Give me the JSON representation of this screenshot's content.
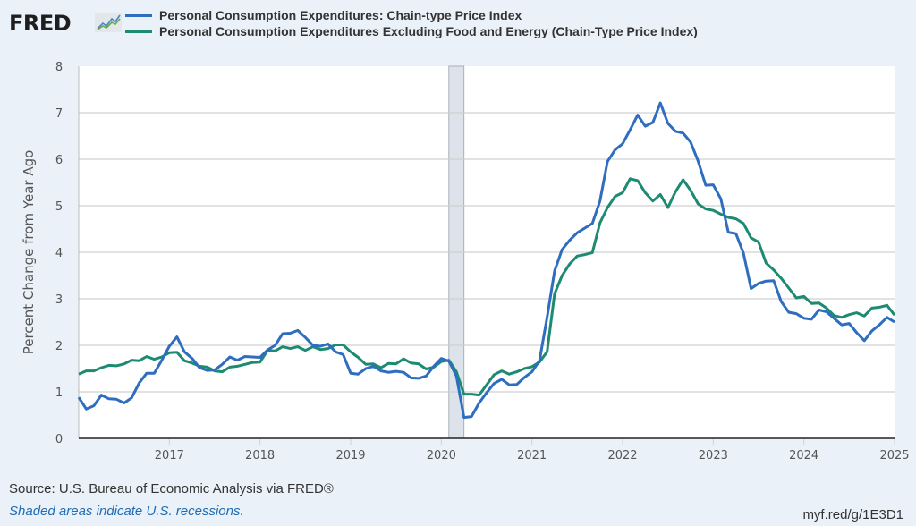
{
  "header": {
    "logo_text": "FRED",
    "logo_icon": "line-chart-icon"
  },
  "footer": {
    "source": "Source: U.S. Bureau of Economic Analysis via FRED®",
    "note": "Shaded areas indicate U.S. recessions.",
    "url": "myf.red/g/1E3D1"
  },
  "chart_data": {
    "type": "line",
    "title": "",
    "xlabel": "",
    "ylabel": "Percent Change from Year Ago",
    "ylim": [
      0,
      8
    ],
    "yticks": [
      "0",
      "1",
      "2",
      "3",
      "4",
      "5",
      "6",
      "7",
      "8"
    ],
    "xlim": [
      "2016-01",
      "2025-01"
    ],
    "xticks": [
      "2017",
      "2018",
      "2019",
      "2020",
      "2021",
      "2022",
      "2023",
      "2024",
      "2025"
    ],
    "grid": true,
    "legend_position": "top",
    "recessions": [
      {
        "start": "2020-02",
        "end": "2020-04"
      }
    ],
    "start": "2016-01",
    "frequency": "monthly",
    "series": [
      {
        "name": "Personal Consumption Expenditures: Chain-type Price Index",
        "color": "#2f6dbf",
        "values": [
          0.88,
          0.63,
          0.7,
          0.93,
          0.85,
          0.84,
          0.76,
          0.87,
          1.19,
          1.4,
          1.4,
          1.68,
          1.98,
          2.18,
          1.86,
          1.72,
          1.52,
          1.46,
          1.47,
          1.59,
          1.75,
          1.68,
          1.76,
          1.75,
          1.74,
          1.9,
          2.0,
          2.25,
          2.26,
          2.32,
          2.17,
          2.0,
          1.98,
          2.03,
          1.86,
          1.8,
          1.4,
          1.38,
          1.5,
          1.55,
          1.45,
          1.42,
          1.44,
          1.42,
          1.3,
          1.29,
          1.34,
          1.55,
          1.72,
          1.66,
          1.34,
          0.45,
          0.47,
          0.76,
          0.98,
          1.18,
          1.27,
          1.15,
          1.16,
          1.31,
          1.43,
          1.67,
          2.6,
          3.6,
          4.06,
          4.26,
          4.42,
          4.52,
          4.62,
          5.1,
          5.95,
          6.2,
          6.33,
          6.63,
          6.95,
          6.71,
          6.79,
          7.21,
          6.77,
          6.6,
          6.56,
          6.37,
          5.96,
          5.44,
          5.45,
          5.15,
          4.43,
          4.4,
          3.98,
          3.22,
          3.33,
          3.38,
          3.39,
          2.94,
          2.71,
          2.68,
          2.58,
          2.56,
          2.76,
          2.72,
          2.58,
          2.44,
          2.47,
          2.27,
          2.1,
          2.31,
          2.44,
          2.6,
          2.5
        ]
      },
      {
        "name": "Personal Consumption Expenditures Excluding Food and Energy (Chain-Type Price Index)",
        "color": "#1d8a72",
        "values": [
          1.38,
          1.45,
          1.45,
          1.52,
          1.57,
          1.56,
          1.6,
          1.68,
          1.67,
          1.76,
          1.7,
          1.75,
          1.84,
          1.85,
          1.67,
          1.62,
          1.55,
          1.53,
          1.45,
          1.43,
          1.53,
          1.55,
          1.59,
          1.63,
          1.64,
          1.89,
          1.88,
          1.97,
          1.93,
          1.97,
          1.89,
          1.97,
          1.91,
          1.93,
          2.01,
          2.01,
          1.86,
          1.74,
          1.59,
          1.6,
          1.52,
          1.61,
          1.6,
          1.71,
          1.62,
          1.6,
          1.49,
          1.53,
          1.65,
          1.68,
          1.43,
          0.95,
          0.95,
          0.93,
          1.15,
          1.37,
          1.45,
          1.38,
          1.43,
          1.5,
          1.54,
          1.64,
          1.86,
          3.11,
          3.5,
          3.75,
          3.92,
          3.95,
          3.99,
          4.63,
          4.96,
          5.2,
          5.28,
          5.58,
          5.54,
          5.28,
          5.1,
          5.24,
          4.96,
          5.3,
          5.56,
          5.33,
          5.04,
          4.93,
          4.9,
          4.82,
          4.75,
          4.72,
          4.62,
          4.31,
          4.22,
          3.77,
          3.62,
          3.44,
          3.23,
          3.02,
          3.05,
          2.9,
          2.91,
          2.8,
          2.64,
          2.6,
          2.66,
          2.7,
          2.63,
          2.8,
          2.82,
          2.86,
          2.65
        ]
      }
    ]
  }
}
